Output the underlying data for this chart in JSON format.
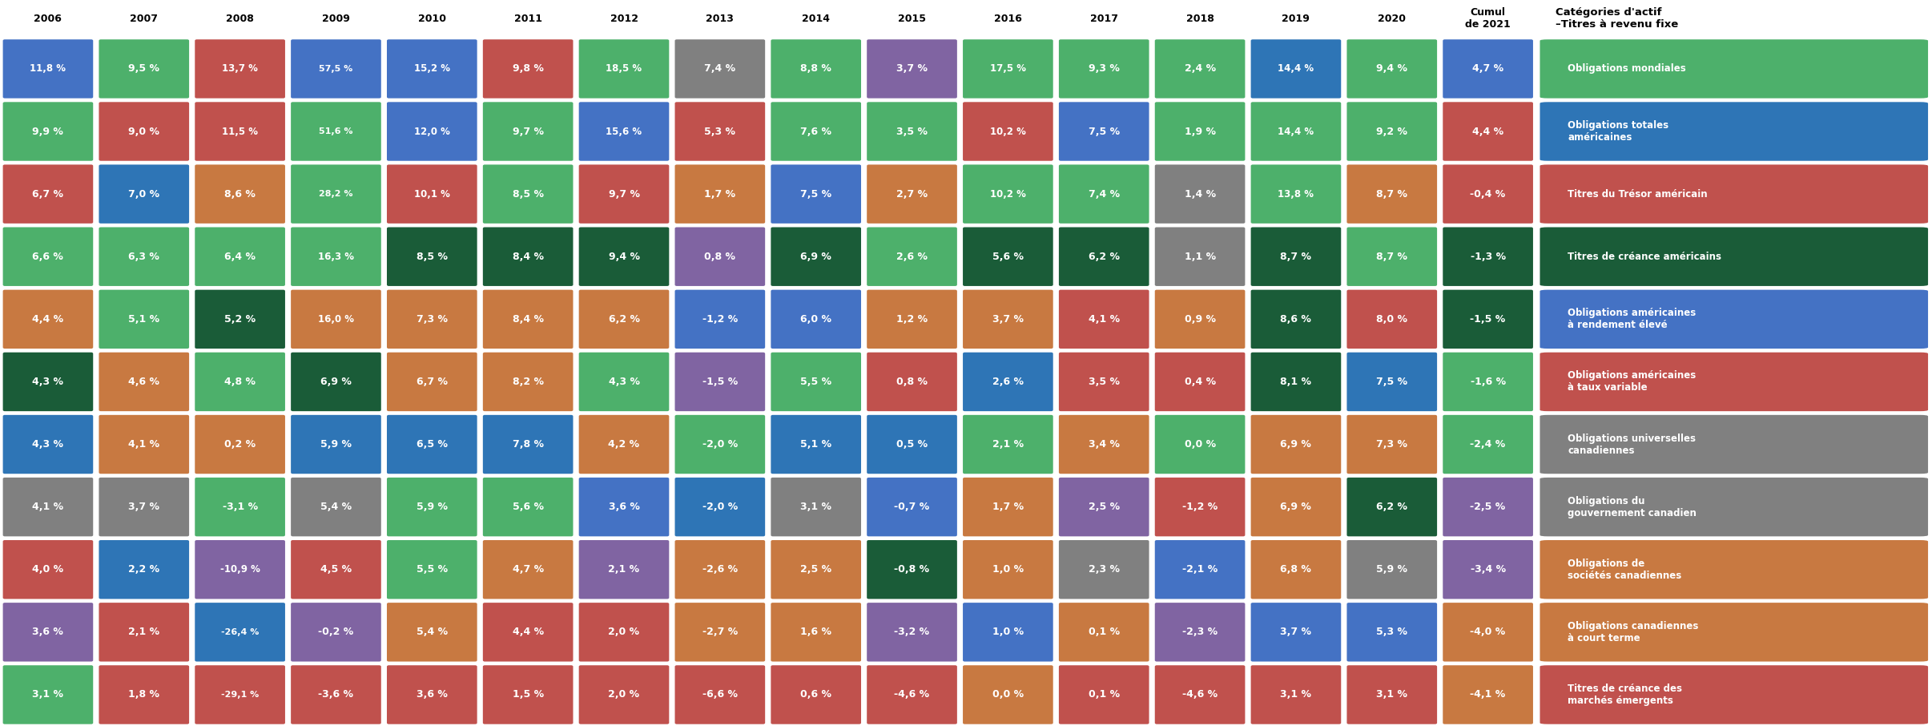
{
  "years": [
    "2006",
    "2007",
    "2008",
    "2009",
    "2010",
    "2011",
    "2012",
    "2013",
    "2014",
    "2015",
    "2016",
    "2017",
    "2018",
    "2019",
    "2020",
    "Cumul\nde 2021"
  ],
  "categories": [
    "Obligations mondiales",
    "Obligations totales\naméricaines",
    "Titres du Trésor américain",
    "Titres de créance américains",
    "Obligations américaines\nà rendement élevé",
    "Obligations américaines\nà taux variable",
    "Obligations universelles\ncanadiennes",
    "Obligations du\ngouvernement canadien",
    "Obligations de\nsociétés canadiennes",
    "Obligations canadiennes\nà court terme",
    "Titres de créance des\nmarchés émergents"
  ],
  "data": [
    [
      11.8,
      9.5,
      13.7,
      57.5,
      15.2,
      9.8,
      18.5,
      7.4,
      8.8,
      3.7,
      17.5,
      9.3,
      2.4,
      14.4,
      9.4,
      4.7
    ],
    [
      9.9,
      9.0,
      11.5,
      51.6,
      12.0,
      9.7,
      15.6,
      5.3,
      7.6,
      3.5,
      10.2,
      7.5,
      1.9,
      14.4,
      9.2,
      4.4
    ],
    [
      6.7,
      7.0,
      8.6,
      28.2,
      10.1,
      8.5,
      9.7,
      1.7,
      7.5,
      2.7,
      10.2,
      7.4,
      1.4,
      13.8,
      8.7,
      -0.4
    ],
    [
      6.6,
      6.3,
      6.4,
      16.3,
      8.5,
      8.4,
      9.4,
      0.8,
      6.9,
      2.6,
      5.6,
      6.2,
      1.1,
      8.7,
      8.7,
      -1.3
    ],
    [
      4.4,
      5.1,
      5.2,
      16.0,
      7.3,
      8.4,
      6.2,
      -1.2,
      6.0,
      1.2,
      3.7,
      4.1,
      0.9,
      8.6,
      8.0,
      -1.5
    ],
    [
      4.3,
      4.6,
      4.8,
      6.9,
      6.7,
      8.2,
      4.3,
      -1.5,
      5.5,
      0.8,
      2.6,
      3.5,
      0.4,
      8.1,
      7.5,
      -1.6
    ],
    [
      4.3,
      4.1,
      0.2,
      5.9,
      6.5,
      7.8,
      4.2,
      -2.0,
      5.1,
      0.5,
      2.1,
      3.4,
      0.0,
      6.9,
      7.3,
      -2.4
    ],
    [
      4.1,
      3.7,
      -3.1,
      5.4,
      5.9,
      5.6,
      3.6,
      -2.0,
      3.1,
      -0.7,
      1.7,
      2.5,
      -1.2,
      6.9,
      6.2,
      -2.5
    ],
    [
      4.0,
      2.2,
      -10.9,
      4.5,
      5.5,
      4.7,
      2.1,
      -2.6,
      2.5,
      -0.8,
      1.0,
      2.3,
      -2.1,
      6.8,
      5.9,
      -3.4
    ],
    [
      3.6,
      2.1,
      -26.4,
      -0.2,
      5.4,
      4.4,
      2.0,
      -2.7,
      1.6,
      -3.2,
      1.0,
      0.1,
      -2.3,
      3.7,
      5.3,
      -4.0
    ],
    [
      3.1,
      1.8,
      -29.1,
      -3.6,
      3.6,
      1.5,
      2.0,
      -6.6,
      0.6,
      -4.6,
      0.0,
      0.1,
      -4.6,
      3.1,
      3.1,
      -4.1
    ]
  ],
  "cell_colors": [
    [
      "#4472c4",
      "#4db06b",
      "#c0514d",
      "#4472c4",
      "#4472c4",
      "#c0514d",
      "#4db06b",
      "#808080",
      "#4db06b",
      "#8064a2",
      "#4db06b",
      "#4db06b",
      "#4db06b",
      "#2e75b6",
      "#4db06b",
      "#4472c4"
    ],
    [
      "#4db06b",
      "#c0514d",
      "#c0514d",
      "#4db06b",
      "#4472c4",
      "#4db06b",
      "#4472c4",
      "#c0514d",
      "#4db06b",
      "#4db06b",
      "#c0514d",
      "#4472c4",
      "#4db06b",
      "#4db06b",
      "#4db06b",
      "#c0514d"
    ],
    [
      "#c0514d",
      "#2e75b6",
      "#c87941",
      "#4db06b",
      "#c0514d",
      "#4db06b",
      "#c0514d",
      "#c87941",
      "#4472c4",
      "#c87941",
      "#4db06b",
      "#4db06b",
      "#808080",
      "#4db06b",
      "#c87941",
      "#c0514d"
    ],
    [
      "#4db06b",
      "#4db06b",
      "#4db06b",
      "#4db06b",
      "#1a5c38",
      "#1a5c38",
      "#1a5c38",
      "#8064a2",
      "#1a5c38",
      "#4db06b",
      "#1a5c38",
      "#1a5c38",
      "#808080",
      "#1a5c38",
      "#4db06b",
      "#1a5c38"
    ],
    [
      "#c87941",
      "#4db06b",
      "#1a5c38",
      "#c87941",
      "#c87941",
      "#c87941",
      "#c87941",
      "#4472c4",
      "#4472c4",
      "#c87941",
      "#c87941",
      "#c0514d",
      "#c87941",
      "#1a5c38",
      "#c0514d",
      "#1a5c38"
    ],
    [
      "#1a5c38",
      "#c87941",
      "#4db06b",
      "#1a5c38",
      "#c87941",
      "#c87941",
      "#4db06b",
      "#8064a2",
      "#4db06b",
      "#c0514d",
      "#2e75b6",
      "#c0514d",
      "#c0514d",
      "#1a5c38",
      "#2e75b6",
      "#4db06b"
    ],
    [
      "#2e75b6",
      "#c87941",
      "#c87941",
      "#2e75b6",
      "#2e75b6",
      "#2e75b6",
      "#c87941",
      "#4db06b",
      "#2e75b6",
      "#2e75b6",
      "#4db06b",
      "#c87941",
      "#4db06b",
      "#c87941",
      "#c87941",
      "#4db06b"
    ],
    [
      "#808080",
      "#808080",
      "#4db06b",
      "#808080",
      "#4db06b",
      "#4db06b",
      "#4472c4",
      "#2e75b6",
      "#808080",
      "#4472c4",
      "#c87941",
      "#8064a2",
      "#c0514d",
      "#c87941",
      "#1a5c38",
      "#8064a2"
    ],
    [
      "#c0514d",
      "#2e75b6",
      "#8064a2",
      "#c0514d",
      "#4db06b",
      "#c87941",
      "#8064a2",
      "#c87941",
      "#c87941",
      "#1a5c38",
      "#c87941",
      "#808080",
      "#4472c4",
      "#c87941",
      "#808080",
      "#8064a2"
    ],
    [
      "#8064a2",
      "#c0514d",
      "#2e75b6",
      "#8064a2",
      "#c87941",
      "#c0514d",
      "#c0514d",
      "#c87941",
      "#c87941",
      "#8064a2",
      "#4472c4",
      "#c87941",
      "#8064a2",
      "#4472c4",
      "#4472c4",
      "#c87941"
    ],
    [
      "#4db06b",
      "#c0514d",
      "#c0514d",
      "#c0514d",
      "#c0514d",
      "#c0514d",
      "#c0514d",
      "#c0514d",
      "#c0514d",
      "#c0514d",
      "#c87941",
      "#c0514d",
      "#c0514d",
      "#c0514d",
      "#c0514d",
      "#c87941"
    ]
  ],
  "legend_cat_colors": [
    "#4db06b",
    "#2e75b6",
    "#c0514d",
    "#1a5c38",
    "#4472c4",
    "#c0514d",
    "#808080",
    "#808080",
    "#c87941",
    "#c87941",
    "#c0514d"
  ],
  "header_text_color": "#000000",
  "white": "#ffffff"
}
